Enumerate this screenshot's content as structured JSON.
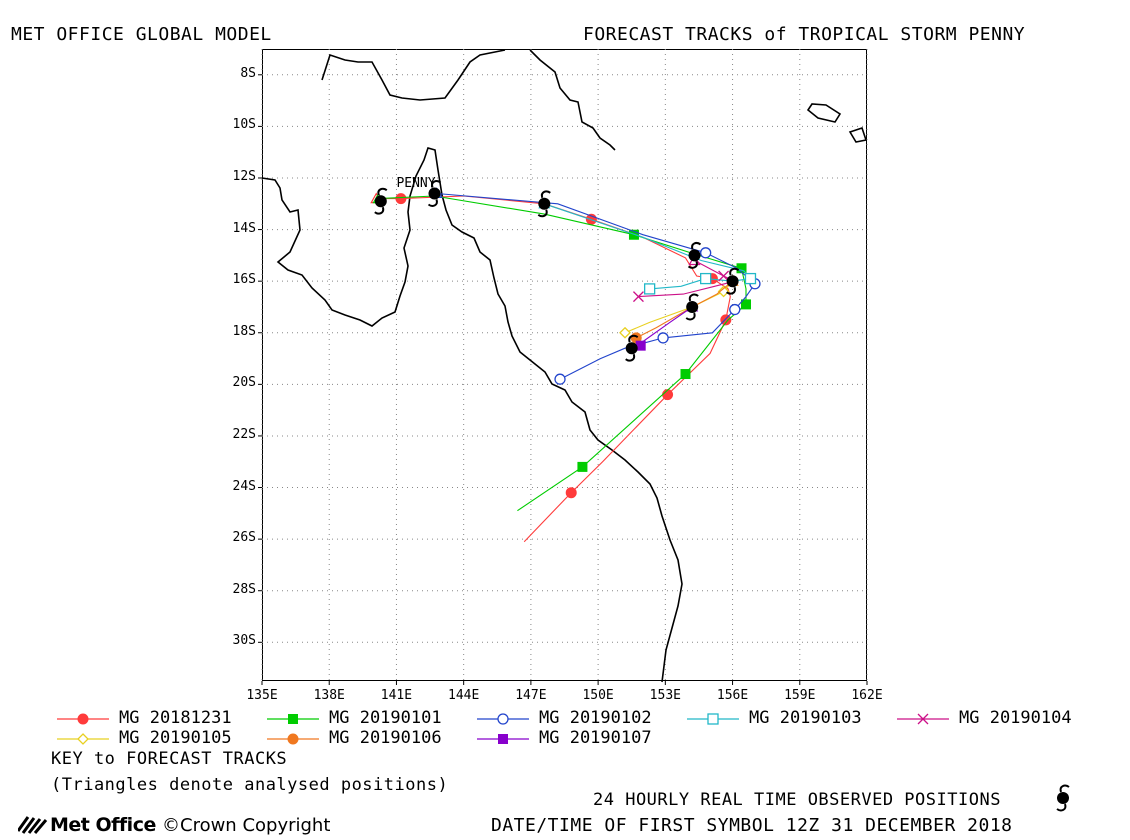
{
  "header": {
    "left_title": "MET OFFICE GLOBAL MODEL",
    "right_title": "FORECAST TRACKS of TROPICAL STORM PENNY"
  },
  "map": {
    "storm_label": "PENNY",
    "lon_range": [
      135,
      162
    ],
    "lat_range": [
      -31.5,
      -7
    ],
    "lat_ticks": [
      "8S",
      "10S",
      "12S",
      "14S",
      "16S",
      "18S",
      "20S",
      "22S",
      "24S",
      "26S",
      "28S",
      "30S"
    ],
    "lon_ticks": [
      "135E",
      "138E",
      "141E",
      "144E",
      "147E",
      "150E",
      "153E",
      "156E",
      "159E",
      "162E"
    ],
    "grid": "dotted"
  },
  "legend": {
    "items": [
      {
        "label": "MG 20181231",
        "color": "#ff3b3b",
        "marker": "circle-filled"
      },
      {
        "label": "MG 20190101",
        "color": "#00cc00",
        "marker": "square-filled"
      },
      {
        "label": "MG 20190102",
        "color": "#2244cc",
        "marker": "circle-open"
      },
      {
        "label": "MG 20190103",
        "color": "#22b8c8",
        "marker": "square-open"
      },
      {
        "label": "MG 20190104",
        "color": "#cc1188",
        "marker": "cross"
      },
      {
        "label": "MG 20190105",
        "color": "#e8d020",
        "marker": "diamond-open"
      },
      {
        "label": "MG 20190106",
        "color": "#f07820",
        "marker": "circle-filled"
      },
      {
        "label": "MG 20190107",
        "color": "#8800cc",
        "marker": "square-filled"
      }
    ],
    "key_title": "KEY to FORECAST TRACKS",
    "key_note": "(Triangles denote analysed positions)"
  },
  "footer": {
    "observed_label": "24 HOURLY REAL TIME OBSERVED POSITIONS",
    "first_symbol": "DATE/TIME OF FIRST SYMBOL 12Z 31 DECEMBER 2018",
    "logo_text": "Met Office",
    "copyright": "©Crown Copyright",
    "logo_icon": "met-office-stripes-icon",
    "observed_icon": "cyclone-symbol-icon"
  },
  "chart_data": {
    "type": "map",
    "observed_positions": [
      {
        "lon": 140.3,
        "lat": -12.9
      },
      {
        "lon": 142.7,
        "lat": -12.6
      },
      {
        "lon": 147.6,
        "lat": -13.0
      },
      {
        "lon": 154.3,
        "lat": -15.0
      },
      {
        "lon": 156.0,
        "lat": -16.0
      },
      {
        "lon": 154.2,
        "lat": -17.0
      },
      {
        "lon": 151.5,
        "lat": -18.6
      }
    ],
    "tracks": [
      {
        "name": "MG 20181231",
        "points": [
          [
            140.1,
            -12.8
          ],
          [
            141.2,
            -12.8
          ],
          [
            144,
            -12.7
          ],
          [
            147.6,
            -13.0
          ],
          [
            149.7,
            -13.6
          ],
          [
            152,
            -14.3
          ],
          [
            153.9,
            -15.1
          ],
          [
            154.4,
            -15.8
          ],
          [
            155.1,
            -15.9
          ],
          [
            155.8,
            -16.3
          ],
          [
            155.9,
            -16.6
          ],
          [
            155.7,
            -17.5
          ],
          [
            155.0,
            -18.8
          ],
          [
            153.1,
            -20.4
          ],
          [
            150.2,
            -23.0
          ],
          [
            148.8,
            -24.2
          ],
          [
            146.7,
            -26.1
          ]
        ],
        "markers": [
          [
            141.2,
            -12.8
          ],
          [
            149.7,
            -13.6
          ],
          [
            155.1,
            -15.9
          ],
          [
            155.7,
            -17.5
          ],
          [
            153.1,
            -20.4
          ],
          [
            148.8,
            -24.2
          ]
        ]
      },
      {
        "name": "MG 20190101",
        "points": [
          [
            140.2,
            -12.8
          ],
          [
            142.7,
            -12.7
          ],
          [
            147.6,
            -13.4
          ],
          [
            151.6,
            -14.2
          ],
          [
            154.5,
            -15.0
          ],
          [
            156.4,
            -15.5
          ],
          [
            156.6,
            -16.3
          ],
          [
            156.6,
            -16.9
          ],
          [
            155.8,
            -17.5
          ],
          [
            153.9,
            -19.6
          ],
          [
            149.3,
            -23.2
          ],
          [
            146.4,
            -24.9
          ]
        ],
        "markers": [
          [
            151.6,
            -14.2
          ],
          [
            156.4,
            -15.5
          ],
          [
            156.6,
            -16.9
          ],
          [
            153.9,
            -19.6
          ],
          [
            149.3,
            -23.2
          ]
        ]
      },
      {
        "name": "MG 20190102",
        "points": [
          [
            142.8,
            -12.6
          ],
          [
            148.2,
            -13.0
          ],
          [
            152,
            -14.2
          ],
          [
            154.8,
            -14.9
          ],
          [
            156.2,
            -15.5
          ],
          [
            157.0,
            -16.1
          ],
          [
            156.6,
            -16.6
          ],
          [
            156.1,
            -17.1
          ],
          [
            155.1,
            -18.0
          ],
          [
            152.9,
            -18.2
          ],
          [
            151.2,
            -18.6
          ],
          [
            150.1,
            -19.0
          ],
          [
            148.3,
            -19.8
          ]
        ],
        "markers": [
          [
            154.8,
            -14.9
          ],
          [
            157.0,
            -16.1
          ],
          [
            156.1,
            -17.1
          ],
          [
            152.9,
            -18.2
          ],
          [
            148.3,
            -19.8
          ]
        ]
      },
      {
        "name": "MG 20190103",
        "points": [
          [
            147.6,
            -13.0
          ],
          [
            152,
            -14.3
          ],
          [
            154.6,
            -15.2
          ],
          [
            156.5,
            -15.6
          ],
          [
            156.8,
            -15.9
          ],
          [
            156.0,
            -16.0
          ],
          [
            154.8,
            -15.9
          ],
          [
            153.7,
            -16.2
          ],
          [
            152.3,
            -16.3
          ]
        ],
        "markers": [
          [
            156.8,
            -15.9
          ],
          [
            154.8,
            -15.9
          ],
          [
            152.3,
            -16.3
          ]
        ]
      },
      {
        "name": "MG 20190104",
        "points": [
          [
            154.3,
            -15.2
          ],
          [
            155.6,
            -15.8
          ],
          [
            156.1,
            -16.0
          ],
          [
            155.2,
            -16.2
          ],
          [
            153.8,
            -16.5
          ],
          [
            151.8,
            -16.6
          ]
        ],
        "markers": [
          [
            155.6,
            -15.8
          ],
          [
            151.8,
            -16.6
          ]
        ]
      },
      {
        "name": "MG 20190105",
        "points": [
          [
            156.0,
            -16.0
          ],
          [
            155.6,
            -16.4
          ],
          [
            154.2,
            -17.0
          ],
          [
            152.3,
            -17.6
          ],
          [
            151.2,
            -18.0
          ]
        ],
        "markers": [
          [
            155.6,
            -16.4
          ],
          [
            151.2,
            -18.0
          ]
        ]
      },
      {
        "name": "MG 20190106",
        "points": [
          [
            156.0,
            -16.0
          ],
          [
            155.3,
            -16.5
          ],
          [
            154.2,
            -17.0
          ],
          [
            152.6,
            -17.8
          ],
          [
            151.7,
            -18.2
          ]
        ],
        "markers": [
          [
            151.7,
            -18.2
          ]
        ]
      },
      {
        "name": "MG 20190107",
        "points": [
          [
            154.2,
            -17.0
          ],
          [
            153.2,
            -17.6
          ],
          [
            151.9,
            -18.4
          ],
          [
            151.5,
            -18.6
          ]
        ],
        "markers": [
          [
            151.9,
            -18.5
          ]
        ]
      }
    ]
  }
}
